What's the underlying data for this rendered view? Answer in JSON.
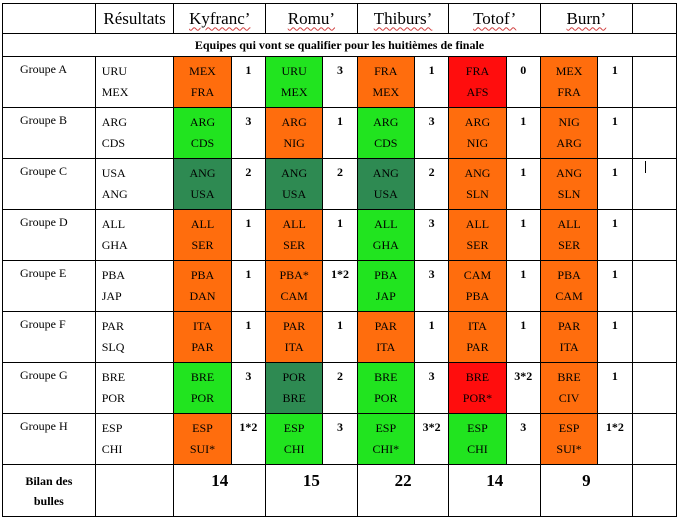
{
  "header": {
    "results_label": "Résultats",
    "players": [
      "Kyfranc’",
      "Romu’",
      "Thiburs’",
      "Totof’",
      "Burn’"
    ]
  },
  "subtitle": "Equipes qui vont se qualifier pour les huitièmes de finale",
  "colors": {
    "orange": "#ff6d0d",
    "green": "#21e41f",
    "dark-green": "#2e8a52",
    "red": "#ff0d0d"
  },
  "groups": [
    {
      "name": "Groupe A",
      "teams": [
        "URU",
        "MEX"
      ],
      "preds": [
        {
          "t1": "MEX",
          "t2": "FRA",
          "pts": "1",
          "color": "orange"
        },
        {
          "t1": "URU",
          "t2": "MEX",
          "pts": "3",
          "color": "green"
        },
        {
          "t1": "FRA",
          "t2": "MEX",
          "pts": "1",
          "color": "orange"
        },
        {
          "t1": "FRA",
          "t2": "AFS",
          "pts": "0",
          "color": "red"
        },
        {
          "t1": "MEX",
          "t2": "FRA",
          "pts": "1",
          "color": "orange"
        }
      ]
    },
    {
      "name": "Groupe B",
      "teams": [
        "ARG",
        "CDS"
      ],
      "preds": [
        {
          "t1": "ARG",
          "t2": "CDS",
          "pts": "3",
          "color": "green"
        },
        {
          "t1": "ARG",
          "t2": "NIG",
          "pts": "1",
          "color": "orange"
        },
        {
          "t1": "ARG",
          "t2": "CDS",
          "pts": "3",
          "color": "green"
        },
        {
          "t1": "ARG",
          "t2": "NIG",
          "pts": "1",
          "color": "orange"
        },
        {
          "t1": "NIG",
          "t2": "ARG",
          "pts": "1",
          "color": "orange"
        }
      ]
    },
    {
      "name": "Groupe C",
      "teams": [
        "USA",
        "ANG"
      ],
      "preds": [
        {
          "t1": "ANG",
          "t2": "USA",
          "pts": "2",
          "color": "dark"
        },
        {
          "t1": "ANG",
          "t2": "USA",
          "pts": "2",
          "color": "dark"
        },
        {
          "t1": "ANG",
          "t2": "USA",
          "pts": "2",
          "color": "dark"
        },
        {
          "t1": "ANG",
          "t2": "SLN",
          "pts": "1",
          "color": "orange"
        },
        {
          "t1": "ANG",
          "t2": "SLN",
          "pts": "1",
          "color": "orange"
        }
      ]
    },
    {
      "name": "Groupe D",
      "teams": [
        "ALL",
        "GHA"
      ],
      "preds": [
        {
          "t1": "ALL",
          "t2": "SER",
          "pts": "1",
          "color": "orange"
        },
        {
          "t1": "ALL",
          "t2": "SER",
          "pts": "1",
          "color": "orange"
        },
        {
          "t1": "ALL",
          "t2": "GHA",
          "pts": "3",
          "color": "green"
        },
        {
          "t1": "ALL",
          "t2": "SER",
          "pts": "1",
          "color": "orange"
        },
        {
          "t1": "ALL",
          "t2": "SER",
          "pts": "1",
          "color": "orange"
        }
      ]
    },
    {
      "name": "Groupe E",
      "teams": [
        "PBA",
        "JAP"
      ],
      "preds": [
        {
          "t1": "PBA",
          "t2": "DAN",
          "pts": "1",
          "color": "orange"
        },
        {
          "t1": "PBA*",
          "t2": "CAM",
          "pts": "1*2",
          "color": "orange"
        },
        {
          "t1": "PBA",
          "t2": "JAP",
          "pts": "3",
          "color": "green"
        },
        {
          "t1": "CAM",
          "t2": "PBA",
          "pts": "1",
          "color": "orange"
        },
        {
          "t1": "PBA",
          "t2": "CAM",
          "pts": "1",
          "color": "orange"
        }
      ]
    },
    {
      "name": "Groupe F",
      "teams": [
        "PAR",
        "SLQ"
      ],
      "preds": [
        {
          "t1": "ITA",
          "t2": "PAR",
          "pts": "1",
          "color": "orange"
        },
        {
          "t1": "PAR",
          "t2": "ITA",
          "pts": "1",
          "color": "orange"
        },
        {
          "t1": "PAR",
          "t2": "ITA",
          "pts": "1",
          "color": "orange"
        },
        {
          "t1": "ITA",
          "t2": "PAR",
          "pts": "1",
          "color": "orange"
        },
        {
          "t1": "PAR",
          "t2": "ITA",
          "pts": "1",
          "color": "orange"
        }
      ]
    },
    {
      "name": "Groupe G",
      "teams": [
        "BRE",
        "POR"
      ],
      "preds": [
        {
          "t1": "BRE",
          "t2": "POR",
          "pts": "3",
          "color": "green"
        },
        {
          "t1": "POR",
          "t2": "BRE",
          "pts": "2",
          "color": "dark"
        },
        {
          "t1": "BRE",
          "t2": "POR",
          "pts": "3",
          "color": "green"
        },
        {
          "t1": "BRE",
          "t2": "POR*",
          "pts": "3*2",
          "color": "red"
        },
        {
          "t1": "BRE",
          "t2": "CIV",
          "pts": "1",
          "color": "orange"
        }
      ]
    },
    {
      "name": "Groupe H",
      "teams": [
        "ESP",
        "CHI"
      ],
      "preds": [
        {
          "t1": "ESP",
          "t2": "SUI*",
          "pts": "1*2",
          "color": "orange"
        },
        {
          "t1": "ESP",
          "t2": "CHI",
          "pts": "3",
          "color": "green"
        },
        {
          "t1": "ESP",
          "t2": "CHI*",
          "pts": "3*2",
          "color": "green"
        },
        {
          "t1": "ESP",
          "t2": "CHI",
          "pts": "3",
          "color": "green"
        },
        {
          "t1": "ESP",
          "t2": "SUI*",
          "pts": "1*2",
          "color": "orange"
        }
      ]
    }
  ],
  "bilan": {
    "label_line1": "Bilan des",
    "label_line2": "bulles",
    "totals": [
      "14",
      "15",
      "22",
      "14",
      "9"
    ]
  }
}
